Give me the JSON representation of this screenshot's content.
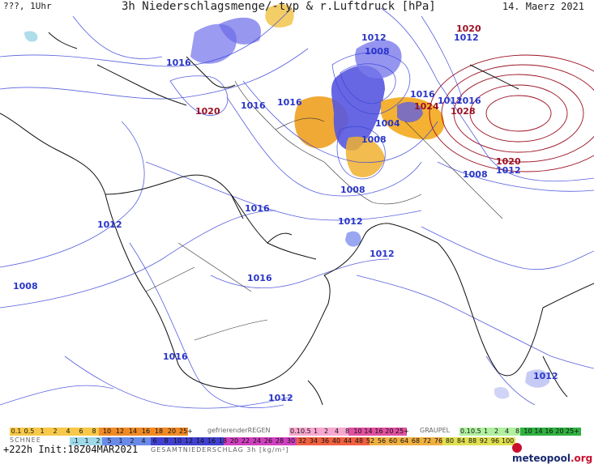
{
  "header": {
    "left": "???, 1Uhr",
    "title": "3h Niederschlagsmenge/-typ & r.Luftdruck [hPa]",
    "date": "14. Maerz 2021"
  },
  "isobar_labels": [
    {
      "text": "1012",
      "kind": "low"
    },
    {
      "text": "1008",
      "kind": "low"
    },
    {
      "text": "1016",
      "kind": "low"
    },
    {
      "text": "1020",
      "kind": "high"
    },
    {
      "text": "1016",
      "kind": "low"
    },
    {
      "text": "1016",
      "kind": "low"
    },
    {
      "text": "1020",
      "kind": "high"
    },
    {
      "text": "1012",
      "kind": "low"
    },
    {
      "text": "1016",
      "kind": "low"
    },
    {
      "text": "1024",
      "kind": "high"
    },
    {
      "text": "1028",
      "kind": "high"
    },
    {
      "text": "1012",
      "kind": "low"
    },
    {
      "text": "1016",
      "kind": "low"
    },
    {
      "text": "1004",
      "kind": "low"
    },
    {
      "text": "1008",
      "kind": "low"
    },
    {
      "text": "1020",
      "kind": "high"
    },
    {
      "text": "1008",
      "kind": "low"
    },
    {
      "text": "1012",
      "kind": "low"
    },
    {
      "text": "1008",
      "kind": "low"
    },
    {
      "text": "1016",
      "kind": "low"
    },
    {
      "text": "1012",
      "kind": "low"
    },
    {
      "text": "1012",
      "kind": "low"
    },
    {
      "text": "1012",
      "kind": "low"
    },
    {
      "text": "1008",
      "kind": "low"
    },
    {
      "text": "1016",
      "kind": "low"
    },
    {
      "text": "1016",
      "kind": "low"
    },
    {
      "text": "1012",
      "kind": "low"
    },
    {
      "text": "1012",
      "kind": "low"
    }
  ],
  "legend": {
    "snow_label": "SCHNEE",
    "snow_values": [
      "0.1",
      "0.5",
      "1",
      "2",
      "4",
      "6",
      "8",
      "10",
      "12",
      "14",
      "16",
      "18",
      "20",
      "25+"
    ],
    "frz_label": "gefrierenderREGEN",
    "frz_values": [
      "0.1",
      "0.5",
      "1",
      "2",
      "4",
      "8",
      "10",
      "14",
      "16",
      "20",
      "25+"
    ],
    "graupel_label": "GRAUPEL",
    "graupel_values": [
      "0.1",
      "0.5",
      "1",
      "2",
      "4",
      "8",
      "10",
      "14",
      "16",
      "20",
      "25+"
    ],
    "total_values": [
      ".1",
      "1",
      "2",
      "5",
      "1",
      "2",
      "4",
      "6",
      "8",
      "10",
      "12",
      "14",
      "16",
      "18",
      "20",
      "22",
      "24",
      "26",
      "28",
      "30",
      "32",
      "34",
      "36",
      "40",
      "44",
      "48",
      "52",
      "56",
      "60",
      "64",
      "68",
      "72",
      "76",
      "80",
      "84",
      "88",
      "92",
      "96",
      "100"
    ],
    "total_label": "GESAMTNIEDERSCHLAG 3h [kg/m²]"
  },
  "footer": {
    "run": "+222h Init:18Z04MAR2021",
    "logo": "meteopool",
    "logo_suffix": ".org"
  },
  "colors": {
    "isobar_low": "#2a36c8",
    "isobar_high": "#9b1023",
    "coast": "#111111",
    "rain_blue": "#5b5be8",
    "snow_orange": "#f0a020"
  }
}
